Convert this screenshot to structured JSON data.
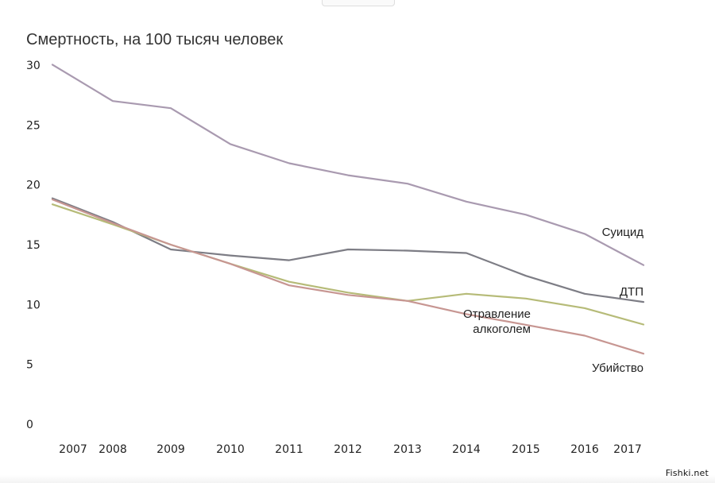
{
  "chart_data": {
    "type": "line",
    "title": "Смертность, на 100 тысяч человек",
    "x": [
      "2007",
      "2008",
      "2009",
      "2010",
      "2011",
      "2012",
      "2013",
      "2014",
      "2015",
      "2016",
      "2017"
    ],
    "ylim": [
      0,
      30
    ],
    "yticks": [
      "0",
      "5",
      "10",
      "15",
      "20",
      "25",
      "30"
    ],
    "grid": false,
    "legend": "inline labels at line ends",
    "series": [
      {
        "name": "Суицид",
        "color": "#a99ab0",
        "values": [
          29.0,
          27.0,
          26.4,
          23.4,
          21.8,
          20.8,
          20.1,
          18.6,
          17.5,
          15.9,
          14.0
        ]
      },
      {
        "name": "ДТП",
        "color": "#7d7d85",
        "values": [
          18.2,
          16.9,
          14.6,
          14.1,
          13.7,
          14.6,
          14.5,
          14.3,
          12.4,
          10.9,
          10.4
        ]
      },
      {
        "name": "Отравление алкоголем",
        "label_lines": [
          "Отравление",
          "алкоголем"
        ],
        "color": "#b6bb78",
        "values": [
          17.8,
          16.7,
          15.0,
          13.4,
          11.9,
          11.0,
          10.3,
          10.9,
          10.5,
          9.7,
          8.7
        ]
      },
      {
        "name": "Убийство",
        "color": "#c79692",
        "values": [
          18.1,
          16.8,
          15.0,
          13.4,
          11.6,
          10.8,
          10.3,
          9.2,
          8.3,
          7.4,
          6.3
        ]
      }
    ]
  },
  "watermark": "Fishki.net"
}
